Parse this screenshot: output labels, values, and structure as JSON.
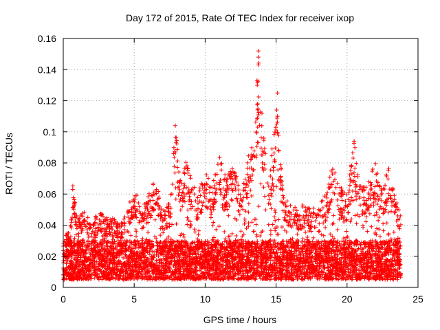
{
  "chart_data": {
    "type": "scatter",
    "title": "Day 172 of 2015, Rate Of TEC Index for receiver ixop",
    "xlabel": "GPS time / hours",
    "ylabel": "ROTI / TECUs",
    "xlim": [
      0,
      25
    ],
    "ylim": [
      0,
      0.16
    ],
    "x_ticks": [
      0,
      5,
      10,
      15,
      20,
      25
    ],
    "x_tick_labels": [
      "0",
      "5",
      "10",
      "15",
      "20",
      "25"
    ],
    "y_ticks": [
      0,
      0.02,
      0.04,
      0.06,
      0.08,
      0.1,
      0.12,
      0.14,
      0.16
    ],
    "y_tick_labels": [
      "0",
      "0.02",
      "0.04",
      "0.06",
      "0.08",
      "0.1",
      "0.12",
      "0.14",
      "0.16"
    ],
    "grid": true,
    "marker": "+",
    "color": "#ff0000",
    "series": [
      {
        "name": "ROTI",
        "envelope": {
          "description": "upper envelope of ROTI values by hour (approx.)",
          "x": [
            0,
            0.5,
            0.7,
            1,
            1.5,
            2,
            2.5,
            3,
            3.5,
            4,
            4.5,
            5,
            5.5,
            6,
            6.5,
            7,
            7.5,
            7.9,
            8.3,
            8.7,
            9,
            9.5,
            10,
            10.5,
            11,
            11.5,
            12,
            12.5,
            13,
            13.5,
            13.75,
            14,
            14.5,
            15,
            15.1,
            15.5,
            16,
            16.5,
            17,
            17.5,
            18,
            18.5,
            19,
            19.5,
            20,
            20.5,
            21,
            21.5,
            22,
            22.5,
            23,
            23.5,
            23.8
          ],
          "y": [
            0.03,
            0.04,
            0.07,
            0.045,
            0.05,
            0.04,
            0.05,
            0.045,
            0.045,
            0.04,
            0.05,
            0.065,
            0.05,
            0.06,
            0.07,
            0.05,
            0.055,
            0.104,
            0.065,
            0.085,
            0.07,
            0.06,
            0.075,
            0.065,
            0.085,
            0.07,
            0.08,
            0.065,
            0.085,
            0.095,
            0.152,
            0.11,
            0.065,
            0.125,
            0.11,
            0.06,
            0.055,
            0.05,
            0.055,
            0.05,
            0.055,
            0.06,
            0.08,
            0.065,
            0.06,
            0.094,
            0.065,
            0.07,
            0.08,
            0.065,
            0.08,
            0.055,
            0.05
          ]
        },
        "baseline_range": [
          0.005,
          0.03
        ],
        "notable_points": [
          {
            "x": 7.9,
            "y": 0.104
          },
          {
            "x": 13.75,
            "y": 0.152
          },
          {
            "x": 13.75,
            "y": 0.148
          },
          {
            "x": 13.75,
            "y": 0.143
          },
          {
            "x": 13.65,
            "y": 0.133
          },
          {
            "x": 15.1,
            "y": 0.125
          },
          {
            "x": 13.7,
            "y": 0.118
          },
          {
            "x": 20.5,
            "y": 0.094
          },
          {
            "x": 15.1,
            "y": 0.11
          },
          {
            "x": 14.0,
            "y": 0.112
          }
        ]
      }
    ]
  }
}
